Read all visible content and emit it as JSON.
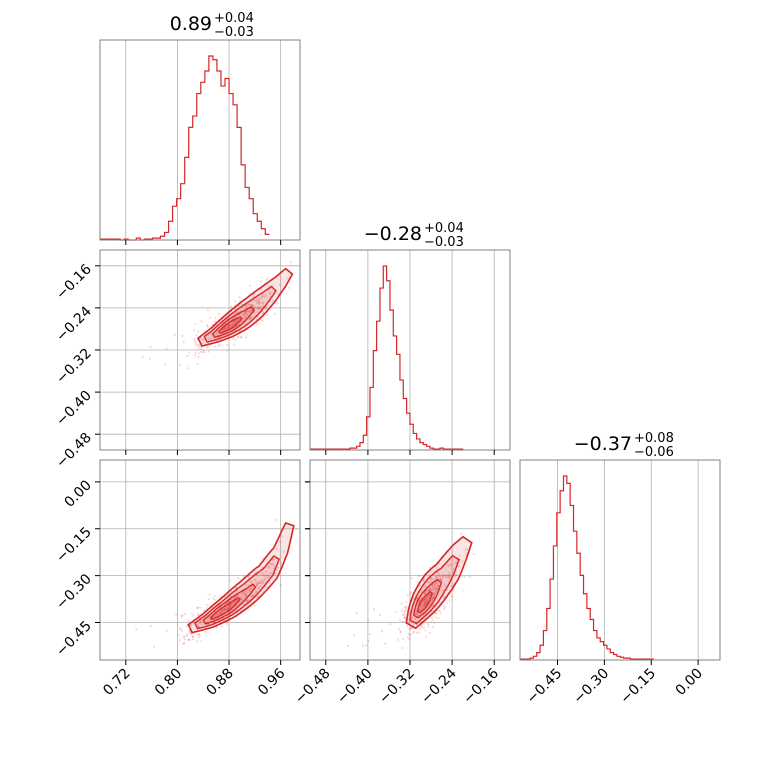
{
  "colors": {
    "series": "#d62728",
    "grid": "#b0b0b0",
    "frame": "#808080"
  },
  "chart_data": {
    "type": "corner",
    "parameters": [
      {
        "title_value": "0.89",
        "title_plus": "+0.04",
        "title_minus": "−0.03",
        "range": [
          0.68,
          0.99
        ],
        "ticks": [
          0.72,
          0.8,
          0.88,
          0.96
        ],
        "tick_labels": [
          "0.72",
          "0.80",
          "0.88",
          "0.96"
        ],
        "histogram": {
          "edges_start": 0.68,
          "edges_step": 0.00625,
          "counts": [
            0.5,
            0.5,
            0.5,
            0.5,
            0.5,
            0,
            0.5,
            0,
            0,
            1,
            0,
            0.5,
            0.5,
            1,
            1,
            2,
            4,
            10,
            18,
            22,
            30,
            44,
            60,
            66,
            78,
            84,
            90,
            98,
            96,
            90,
            82,
            86,
            78,
            72,
            60,
            40,
            28,
            22,
            14,
            10,
            6,
            3
          ]
        }
      },
      {
        "title_value": "−0.28",
        "title_plus": "+0.04",
        "title_minus": "−0.03",
        "range": [
          -0.51,
          -0.13
        ],
        "ticks": [
          -0.48,
          -0.4,
          -0.32,
          -0.24,
          -0.16
        ],
        "tick_labels": [
          "−0.48",
          "−0.40",
          "−0.32",
          "−0.24",
          "−0.16"
        ],
        "histogram": {
          "edges_start": -0.51,
          "edges_step": 0.00633,
          "counts": [
            0.5,
            0.5,
            0.5,
            0.5,
            0.5,
            0.5,
            0.5,
            0.5,
            0.5,
            0.5,
            0.5,
            0.5,
            1,
            1,
            2,
            4,
            8,
            18,
            34,
            54,
            70,
            88,
            100,
            92,
            76,
            62,
            52,
            38,
            28,
            20,
            14,
            9,
            6,
            4,
            3,
            2,
            1,
            0.5,
            0.5,
            1,
            0.5,
            0.5,
            0.5,
            0.5,
            0.5,
            0.5
          ]
        }
      },
      {
        "title_value": "−0.37",
        "title_plus": "+0.08",
        "title_minus": "−0.06",
        "range": [
          -0.57,
          0.07
        ],
        "ticks": [
          -0.45,
          -0.3,
          -0.15,
          0.0
        ],
        "tick_labels": [
          "−0.45",
          "−0.30",
          "−0.15",
          "0.00"
        ],
        "histogram": {
          "edges_start": -0.57,
          "edges_step": 0.0107,
          "counts": [
            0.5,
            0.5,
            0.5,
            1,
            2,
            4,
            8,
            16,
            28,
            44,
            62,
            80,
            92,
            100,
            96,
            84,
            70,
            58,
            46,
            36,
            28,
            22,
            16,
            12,
            10,
            8,
            6,
            4,
            3,
            2,
            1.5,
            1,
            1,
            0.5,
            0.5,
            0.5,
            0.5,
            0.5,
            0.5,
            0.5
          ]
        }
      }
    ],
    "pairs": [
      {
        "x_param": 0,
        "y_param": 1,
        "ridge": [
          [
            0.835,
            -0.305
          ],
          [
            0.86,
            -0.29
          ],
          [
            0.88,
            -0.275
          ],
          [
            0.9,
            -0.258
          ],
          [
            0.92,
            -0.238
          ],
          [
            0.94,
            -0.215
          ],
          [
            0.96,
            -0.19
          ],
          [
            0.98,
            -0.16
          ]
        ],
        "width": 0.012
      },
      {
        "x_param": 0,
        "y_param": 2,
        "ridge": [
          [
            0.82,
            -0.47
          ],
          [
            0.85,
            -0.44
          ],
          [
            0.88,
            -0.4
          ],
          [
            0.91,
            -0.35
          ],
          [
            0.94,
            -0.29
          ],
          [
            0.96,
            -0.22
          ],
          [
            0.98,
            -0.1
          ]
        ],
        "width": 0.012
      },
      {
        "x_param": 1,
        "y_param": 2,
        "ridge": [
          [
            -0.318,
            -0.46
          ],
          [
            -0.305,
            -0.42
          ],
          [
            -0.29,
            -0.38
          ],
          [
            -0.27,
            -0.33
          ],
          [
            -0.25,
            -0.29
          ],
          [
            -0.225,
            -0.22
          ],
          [
            -0.205,
            -0.17
          ]
        ],
        "width": 0.018
      }
    ],
    "title": "",
    "grid": true
  }
}
